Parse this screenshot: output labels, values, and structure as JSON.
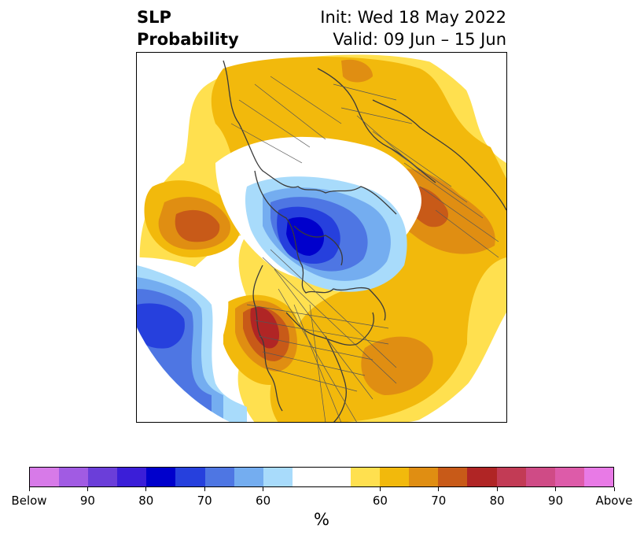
{
  "title": {
    "left_line1": "SLP",
    "left_line2": "Probability",
    "right_line1": "Init: Wed 18 May 2022",
    "right_line2": "Valid: 09 Jun – 15 Jun"
  },
  "colorbar": {
    "unit": "%",
    "ticks": [
      {
        "label": "Below",
        "boundary": 0
      },
      {
        "label": "90",
        "boundary": 2
      },
      {
        "label": "80",
        "boundary": 4
      },
      {
        "label": "70",
        "boundary": 6
      },
      {
        "label": "60",
        "boundary": 8
      },
      {
        "label": "60",
        "boundary": 12
      },
      {
        "label": "70",
        "boundary": 14
      },
      {
        "label": "80",
        "boundary": 16
      },
      {
        "label": "90",
        "boundary": 18
      },
      {
        "label": "Above",
        "boundary": 20
      }
    ],
    "colors": [
      "#d77ae8",
      "#a15be3",
      "#6b3ed9",
      "#3b1ed8",
      "#0000cc",
      "#2640dd",
      "#4e76e3",
      "#74adf0",
      "#a8dbfb",
      "#ffffff",
      "#ffffff",
      "#ffe04f",
      "#f2b90c",
      "#e08e12",
      "#c85a18",
      "#b02525",
      "#c23b55",
      "#cf4b86",
      "#dd5ba9",
      "#e87ae6"
    ]
  },
  "map": {
    "projection": "north polar stereographic",
    "field": "sea level pressure tercile probability",
    "colors": {
      "below_60": "#a8dbfb",
      "below_70": "#74adf0",
      "below_80": "#4e76e3",
      "below_90": "#2640dd",
      "below_100": "#0000cc",
      "above_50": "#ffe04f",
      "above_60": "#f2b90c",
      "above_70": "#e08e12",
      "above_80": "#c85a18",
      "above_90": "#b02525",
      "coast": "#3a3a3a"
    }
  }
}
